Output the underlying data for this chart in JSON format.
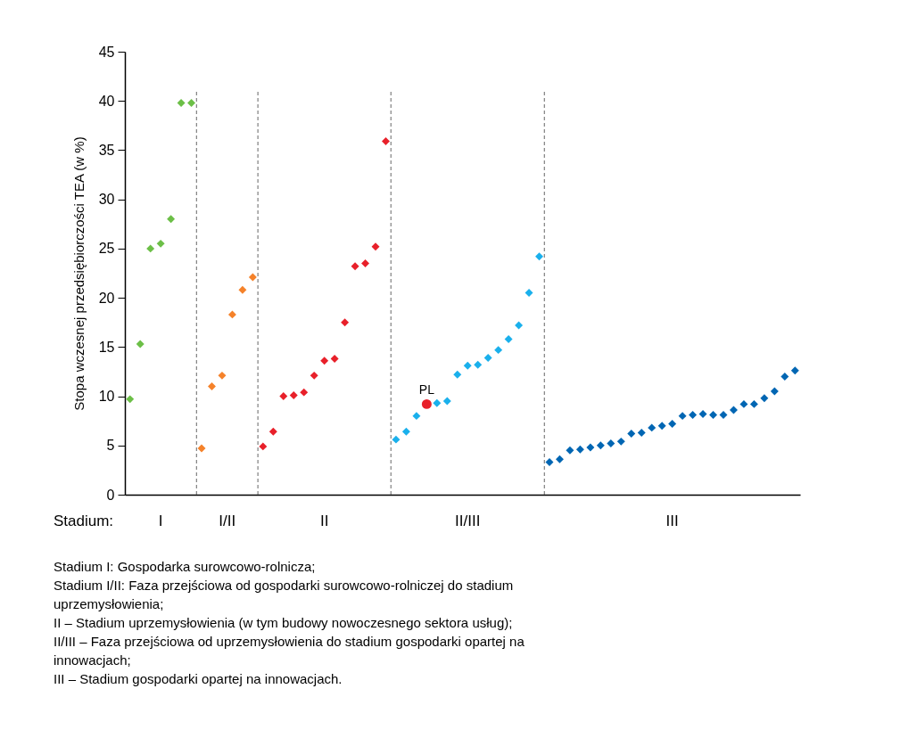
{
  "chart_data": {
    "type": "scatter",
    "ylabel": "Stopa wczesnej przedsiębiorczości TEA (w %)",
    "categories": [
      null,
      null,
      null,
      null,
      null,
      null,
      null,
      null,
      null,
      null,
      null,
      null,
      null,
      null,
      null,
      null,
      null,
      null,
      null,
      null,
      null,
      null,
      null,
      null,
      null,
      null,
      null,
      null,
      null,
      null,
      null,
      null,
      null,
      null,
      null,
      null,
      null,
      null,
      null,
      null,
      null,
      null,
      null,
      null,
      null,
      null,
      null,
      null,
      null,
      null,
      null,
      null,
      null,
      null,
      null,
      null,
      null,
      null,
      null,
      null,
      null,
      null,
      null,
      null,
      null,
      null
    ],
    "ylim": [
      0,
      45
    ],
    "yticks": [
      0,
      5,
      10,
      15,
      20,
      25,
      30,
      35,
      40,
      45
    ],
    "tick_labels": "y",
    "grid": false,
    "marker": "diamond",
    "series": [
      {
        "color": "#6cbf47",
        "values": [
          9.7,
          15.3,
          25.0,
          25.5,
          28.0,
          39.8,
          39.8,
          null,
          null,
          null,
          null,
          null,
          null,
          null,
          null,
          null,
          null,
          null,
          null,
          null,
          null,
          null,
          null,
          null,
          null,
          null,
          null,
          null,
          null,
          null,
          null,
          null,
          null,
          null,
          null,
          null,
          null,
          null,
          null,
          null,
          null,
          null,
          null,
          null,
          null,
          null,
          null,
          null,
          null,
          null,
          null,
          null,
          null,
          null,
          null,
          null,
          null,
          null,
          null,
          null,
          null,
          null,
          null,
          null,
          null,
          null
        ]
      },
      {
        "color": "#f5822a",
        "values": [
          null,
          null,
          null,
          null,
          null,
          null,
          null,
          4.7,
          11.0,
          12.1,
          18.3,
          20.8,
          22.1,
          null,
          null,
          null,
          null,
          null,
          null,
          null,
          null,
          null,
          null,
          null,
          null,
          null,
          null,
          null,
          null,
          null,
          null,
          null,
          null,
          null,
          null,
          null,
          null,
          null,
          null,
          null,
          null,
          null,
          null,
          null,
          null,
          null,
          null,
          null,
          null,
          null,
          null,
          null,
          null,
          null,
          null,
          null,
          null,
          null,
          null,
          null,
          null,
          null,
          null,
          null,
          null,
          null
        ]
      },
      {
        "color": "#e8202a",
        "values": [
          null,
          null,
          null,
          null,
          null,
          null,
          null,
          null,
          null,
          null,
          null,
          null,
          null,
          4.9,
          6.4,
          10.0,
          10.1,
          10.4,
          12.1,
          13.6,
          13.8,
          17.5,
          23.2,
          23.5,
          25.2,
          35.9,
          null,
          null,
          null,
          null,
          null,
          null,
          null,
          null,
          null,
          null,
          null,
          null,
          null,
          null,
          null,
          null,
          null,
          null,
          null,
          null,
          null,
          null,
          null,
          null,
          null,
          null,
          null,
          null,
          null,
          null,
          null,
          null,
          null,
          null,
          null,
          null,
          null,
          null,
          null,
          null
        ]
      },
      {
        "color": "#1ab0ec",
        "values": [
          null,
          null,
          null,
          null,
          null,
          null,
          null,
          null,
          null,
          null,
          null,
          null,
          null,
          null,
          null,
          null,
          null,
          null,
          null,
          null,
          null,
          null,
          null,
          null,
          null,
          null,
          5.6,
          6.4,
          8.0,
          null,
          9.3,
          9.5,
          12.2,
          13.1,
          13.2,
          13.9,
          14.7,
          15.8,
          17.2,
          20.5,
          24.2,
          null,
          null,
          null,
          null,
          null,
          null,
          null,
          null,
          null,
          null,
          null,
          null,
          null,
          null,
          null,
          null,
          null,
          null,
          null,
          null,
          null,
          null,
          null,
          null,
          null
        ]
      },
      {
        "name": "PL",
        "color": "#e8202a",
        "marker": "circle",
        "values": [
          null,
          null,
          null,
          null,
          null,
          null,
          null,
          null,
          null,
          null,
          null,
          null,
          null,
          null,
          null,
          null,
          null,
          null,
          null,
          null,
          null,
          null,
          null,
          null,
          null,
          null,
          null,
          null,
          null,
          9.2,
          null,
          null,
          null,
          null,
          null,
          null,
          null,
          null,
          null,
          null,
          null,
          null,
          null,
          null,
          null,
          null,
          null,
          null,
          null,
          null,
          null,
          null,
          null,
          null,
          null,
          null,
          null,
          null,
          null,
          null,
          null,
          null,
          null,
          null,
          null,
          null
        ]
      },
      {
        "color": "#0066b3",
        "values": [
          null,
          null,
          null,
          null,
          null,
          null,
          null,
          null,
          null,
          null,
          null,
          null,
          null,
          null,
          null,
          null,
          null,
          null,
          null,
          null,
          null,
          null,
          null,
          null,
          null,
          null,
          null,
          null,
          null,
          null,
          null,
          null,
          null,
          null,
          null,
          null,
          null,
          null,
          null,
          null,
          null,
          3.3,
          3.6,
          4.5,
          4.6,
          4.8,
          5.0,
          5.2,
          5.4,
          6.2,
          6.3,
          6.8,
          7.0,
          7.2,
          8.0,
          8.1,
          8.2,
          8.1,
          8.1,
          8.6,
          9.2,
          9.2,
          9.8,
          10.5,
          12.0,
          12.6
        ]
      }
    ],
    "annotations": [
      "Stadium:",
      "I",
      "I/II",
      "II",
      "II/III",
      "III",
      "Stadium I: Gospodarka surowcowo-rolnicza;",
      "Stadium I/II: Faza przejściowa od gospodarki surowcowo-rolniczej do stadium uprzemysłowienia;",
      "II – Stadium uprzemysłowienia (w tym budowy nowoczesnego sektora usług);",
      "II/III – Faza przejściowa od uprzemysłowienia do stadium gospodarki opartej na innowacjach;",
      "III – Stadium gospodarki opartej na innowacjach."
    ]
  }
}
